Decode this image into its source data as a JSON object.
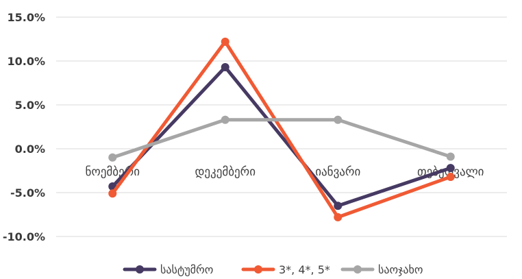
{
  "chart_data": {
    "type": "line",
    "categories": [
      "ნოემბერი",
      "დეკემბერი",
      "იანვარი",
      "თებერვალი"
    ],
    "series": [
      {
        "name": "სასტუმრო",
        "color": "#463a63",
        "values": [
          -4.3,
          9.3,
          -6.5,
          -2.2
        ]
      },
      {
        "name": "3*, 4*, 5*",
        "color": "#f05a34",
        "values": [
          -5.1,
          12.2,
          -7.8,
          -3.2
        ]
      },
      {
        "name": "საოჯახო",
        "color": "#a6a6a6",
        "values": [
          -1.0,
          3.3,
          3.3,
          -0.9
        ]
      }
    ],
    "ylim": [
      -10,
      15
    ],
    "yticks": [
      "15.0%",
      "10.0%",
      "5.0%",
      "0.0%",
      "-5.0%",
      "-10.0%"
    ],
    "grid": true,
    "legend_position": "bottom"
  }
}
